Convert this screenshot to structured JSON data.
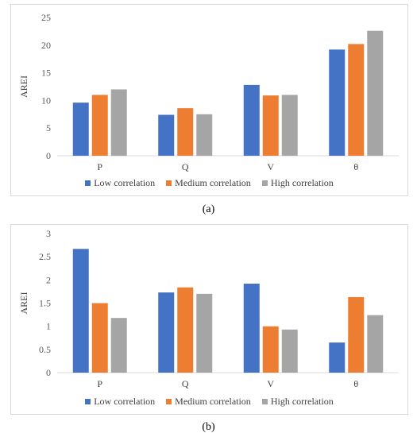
{
  "captions": [
    "(a)",
    "(b)"
  ],
  "chart_data": [
    {
      "type": "bar",
      "title": "",
      "xlabel": "",
      "ylabel": "AREI",
      "categories": [
        "P",
        "Q",
        "V",
        "θ"
      ],
      "ylim": [
        0,
        25
      ],
      "yticks": [
        "0",
        "5",
        "10",
        "15",
        "20",
        "25"
      ],
      "grid": false,
      "legend": "bottom",
      "series": [
        {
          "name": "Low correlation",
          "color": "#4472c4",
          "values": [
            9.6,
            7.4,
            12.8,
            19.2
          ]
        },
        {
          "name": "Medium correlation",
          "color": "#ed7d31",
          "values": [
            11.0,
            8.6,
            10.9,
            20.2
          ]
        },
        {
          "name": "High correlation",
          "color": "#a5a5a5",
          "values": [
            12.0,
            7.5,
            11.0,
            22.6
          ]
        }
      ]
    },
    {
      "type": "bar",
      "title": "",
      "xlabel": "",
      "ylabel": "AREI",
      "categories": [
        "P",
        "Q",
        "V",
        "θ"
      ],
      "ylim": [
        0,
        3
      ],
      "yticks": [
        "0",
        "0.5",
        "1",
        "1.5",
        "2",
        "2.5",
        "3"
      ],
      "grid": false,
      "legend": "bottom",
      "series": [
        {
          "name": "Low correlation",
          "color": "#4472c4",
          "values": [
            2.67,
            1.73,
            1.92,
            0.65
          ]
        },
        {
          "name": "Medium correlation",
          "color": "#ed7d31",
          "values": [
            1.5,
            1.84,
            1.0,
            1.63
          ]
        },
        {
          "name": "High correlation",
          "color": "#a5a5a5",
          "values": [
            1.18,
            1.7,
            0.93,
            1.24
          ]
        }
      ]
    }
  ]
}
